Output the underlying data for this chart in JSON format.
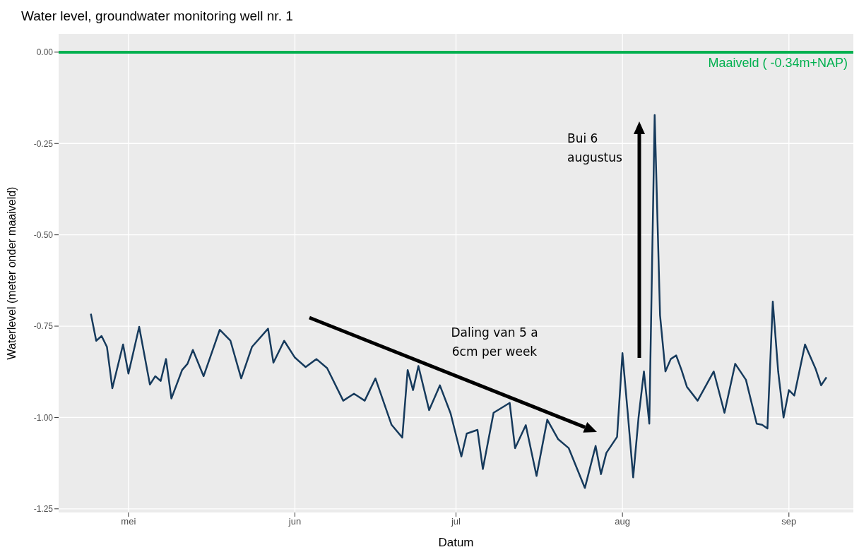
{
  "chart_data": {
    "type": "line",
    "title": "Water level, groundwater monitoring well nr. 1",
    "xlabel": "Datum",
    "ylabel": "Waterlevel (meter onder maaiveld)",
    "x": [
      "--04-24",
      "--04-25",
      "--04-26",
      "--04-27",
      "--04-28",
      "--04-30",
      "--05-01",
      "--05-03",
      "--05-05",
      "--05-06",
      "--05-07",
      "--05-08",
      "--05-09",
      "--05-11",
      "--05-12",
      "--05-13",
      "--05-15",
      "--05-18",
      "--05-20",
      "--05-22",
      "--05-24",
      "--05-27",
      "--05-28",
      "--05-30",
      "--06-01",
      "--06-03",
      "--06-05",
      "--06-07",
      "--06-10",
      "--06-12",
      "--06-14",
      "--06-16",
      "--06-19",
      "--06-21",
      "--06-22",
      "--06-23",
      "--06-24",
      "--06-26",
      "--06-28",
      "--06-30",
      "--07-02",
      "--07-03",
      "--07-05",
      "--07-06",
      "--07-08",
      "--07-11",
      "--07-12",
      "--07-14",
      "--07-16",
      "--07-18",
      "--07-20",
      "--07-22",
      "--07-25",
      "--07-27",
      "--07-28",
      "--07-29",
      "--07-31",
      "--08-01",
      "--08-02",
      "--08-03",
      "--08-04",
      "--08-05",
      "--08-06",
      "--08-07",
      "--08-08",
      "--08-09",
      "--08-10",
      "--08-11",
      "--08-12",
      "--08-13",
      "--08-15",
      "--08-18",
      "--08-20",
      "--08-22",
      "--08-24",
      "--08-26",
      "--08-27",
      "--08-28",
      "--08-29",
      "--08-30",
      "--08-31",
      "--09-01",
      "--09-02",
      "--09-04",
      "--09-06",
      "--09-07",
      "--09-08"
    ],
    "series": [
      {
        "color": "#163a5c",
        "values": [
          -0.716,
          -0.79,
          -0.777,
          -0.807,
          -0.92,
          -0.8,
          -0.88,
          -0.752,
          -0.91,
          -0.887,
          -0.9,
          -0.84,
          -0.948,
          -0.87,
          -0.853,
          -0.815,
          -0.887,
          -0.76,
          -0.79,
          -0.893,
          -0.807,
          -0.757,
          -0.85,
          -0.79,
          -0.836,
          -0.862,
          -0.84,
          -0.865,
          -0.954,
          -0.935,
          -0.954,
          -0.893,
          -1.02,
          -1.055,
          -0.87,
          -0.925,
          -0.859,
          -0.98,
          -0.912,
          -0.989,
          -1.107,
          -1.044,
          -1.034,
          -1.141,
          -0.987,
          -0.96,
          -1.084,
          -1.021,
          -1.16,
          -1.006,
          -1.059,
          -1.084,
          -1.193,
          -1.078,
          -1.155,
          -1.097,
          -1.053,
          -0.824,
          -0.99,
          -1.164,
          -1.0,
          -0.874,
          -1.017,
          -0.172,
          -0.72,
          -0.874,
          -0.84,
          -0.83,
          -0.87,
          -0.916,
          -0.954,
          -0.874,
          -0.987,
          -0.853,
          -0.897,
          -1.017,
          -1.02,
          -1.03,
          -0.683,
          -0.874,
          -1.0,
          -0.925,
          -0.94,
          -0.8,
          -0.868,
          -0.912,
          -0.89
        ]
      }
    ],
    "xlim": [
      "--04-18",
      "--09-13"
    ],
    "xticks": [
      {
        "value": "--05-01",
        "label": "mei"
      },
      {
        "value": "--06-01",
        "label": "jun"
      },
      {
        "value": "--07-01",
        "label": "jul"
      },
      {
        "value": "--08-01",
        "label": "aug"
      },
      {
        "value": "--09-01",
        "label": "sep"
      }
    ],
    "ylim": [
      -1.26,
      0.05
    ],
    "yticks": [
      {
        "value": 0,
        "label": "0.00"
      },
      {
        "value": -0.25,
        "label": "-0.25"
      },
      {
        "value": -0.5,
        "label": "-0.50"
      },
      {
        "value": -0.75,
        "label": "-0.75"
      },
      {
        "value": -1,
        "label": "-1.00"
      },
      {
        "value": -1.25,
        "label": "-1.25"
      }
    ],
    "ref_lines": [
      {
        "axis": "y",
        "value": 0,
        "label": "Maaiveld ( -0.34m+NAP)",
        "color": "#00b04f"
      }
    ],
    "annotations": [
      "Daling van 5 a 6cm per week",
      "Bui 6 augustus"
    ],
    "grid": true,
    "legend": false,
    "marker": "none",
    "line_style": "solid"
  }
}
